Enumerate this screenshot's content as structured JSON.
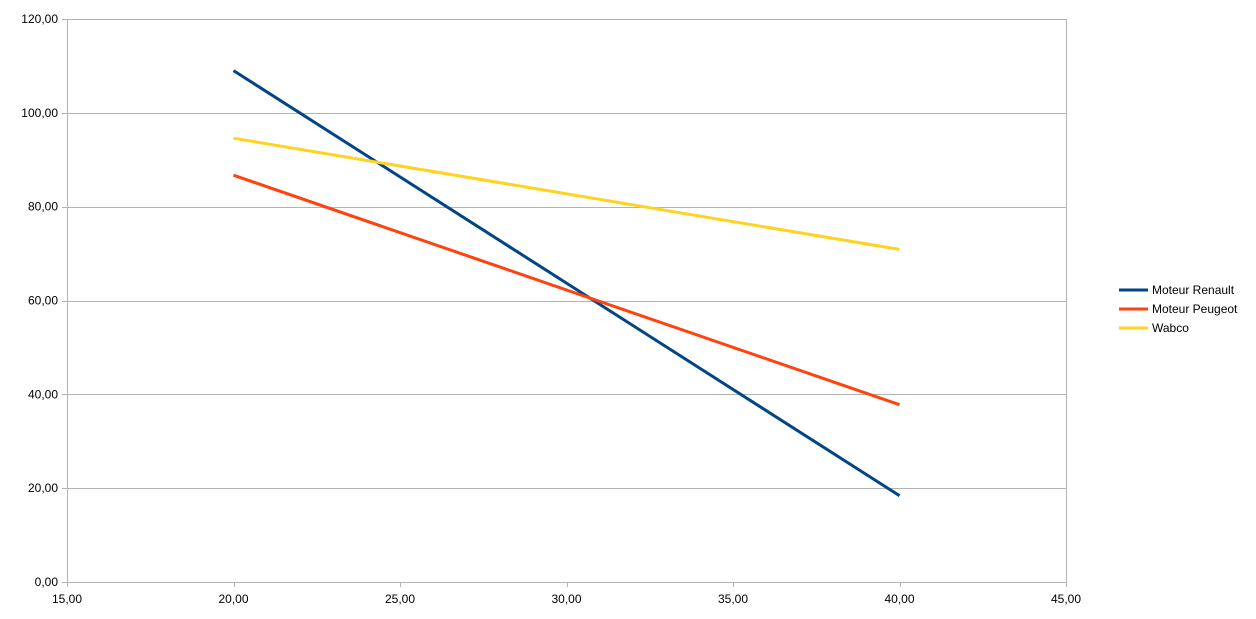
{
  "chart_data": {
    "type": "line",
    "title": "",
    "xlabel": "",
    "ylabel": "",
    "xlim": [
      15,
      45
    ],
    "ylim": [
      0,
      120
    ],
    "x_ticks": [
      15,
      20,
      25,
      30,
      35,
      40,
      45
    ],
    "y_ticks": [
      0,
      20,
      40,
      60,
      80,
      100,
      120
    ],
    "x_tick_labels": [
      "15,00",
      "20,00",
      "25,00",
      "30,00",
      "35,00",
      "40,00",
      "45,00"
    ],
    "y_tick_labels": [
      "0,00",
      "20,00",
      "40,00",
      "60,00",
      "80,00",
      "100,00",
      "120,00"
    ],
    "grid": "horizontal",
    "legend_position": "right",
    "series": [
      {
        "name": "Moteur Renault",
        "color": "#004586",
        "x": [
          20,
          40
        ],
        "y": [
          109,
          18.4
        ]
      },
      {
        "name": "Moteur Peugeot",
        "color": "#ff420e",
        "x": [
          20,
          40
        ],
        "y": [
          86.7,
          37.8
        ]
      },
      {
        "name": "Wabco",
        "color": "#ffd320",
        "x": [
          20,
          40
        ],
        "y": [
          94.6,
          70.9
        ]
      }
    ]
  }
}
